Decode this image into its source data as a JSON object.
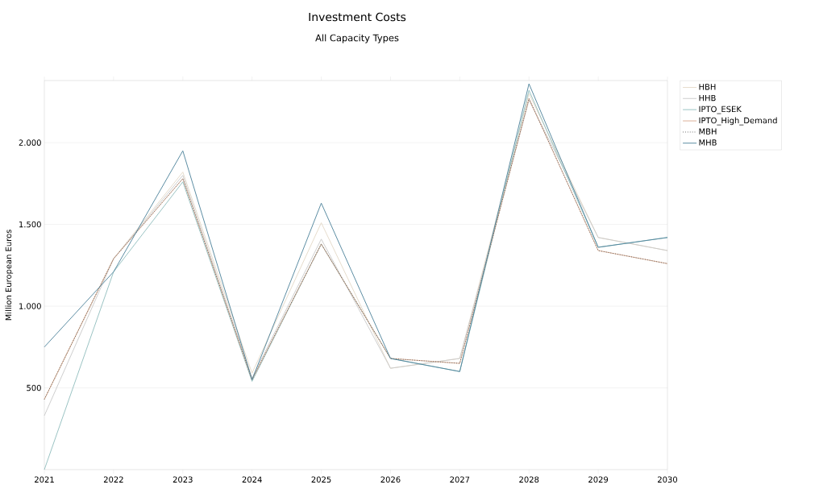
{
  "chart_data": {
    "type": "line",
    "title": "Investment Costs",
    "subtitle": "All Capacity Types",
    "ylabel": "Million European Euros",
    "x": [
      2021,
      2022,
      2023,
      2024,
      2025,
      2026,
      2027,
      2028,
      2029,
      2030
    ],
    "xlim": [
      2021,
      2030
    ],
    "xticks": [
      2021,
      2022,
      2023,
      2024,
      2025,
      2026,
      2027,
      2028,
      2029,
      2030
    ],
    "ylim": [
      0,
      2380
    ],
    "yticks": [
      {
        "value": 500,
        "label": "500"
      },
      {
        "value": 1000,
        "label": "1.000"
      },
      {
        "value": 1500,
        "label": "1.500"
      },
      {
        "value": 2000,
        "label": "2.000"
      }
    ],
    "grid": "y",
    "legend": "right",
    "marker": "none",
    "series": [
      {
        "name": "HBH",
        "color": "#e3d8c6",
        "line_style": "solid",
        "values": [
          430,
          1290,
          1820,
          590,
          1510,
          620,
          680,
          2300,
          1420,
          1340
        ]
      },
      {
        "name": "HHB",
        "color": "#c8c8c8",
        "line_style": "solid",
        "values": [
          330,
          1290,
          1800,
          560,
          1410,
          620,
          680,
          2260,
          1420,
          1340
        ]
      },
      {
        "name": "IPTO_ESEK",
        "color": "#8fbcbc",
        "line_style": "solid",
        "values": [
          0,
          1210,
          1760,
          540,
          1380,
          680,
          600,
          2320,
          1360,
          1420
        ]
      },
      {
        "name": "IPTO_High_Demand",
        "color": "#d9a88c",
        "line_style": "solid",
        "values": [
          430,
          1290,
          1780,
          550,
          1380,
          680,
          650,
          2270,
          1340,
          1260
        ]
      },
      {
        "name": "MBH",
        "color": "#555555",
        "line_style": "dotted",
        "values": [
          430,
          1290,
          1780,
          550,
          1380,
          680,
          650,
          2270,
          1340,
          1260
        ]
      },
      {
        "name": "MHB",
        "color": "#4a8099",
        "line_style": "solid",
        "values": [
          750,
          1210,
          1950,
          550,
          1630,
          680,
          600,
          2360,
          1360,
          1420
        ]
      }
    ]
  }
}
